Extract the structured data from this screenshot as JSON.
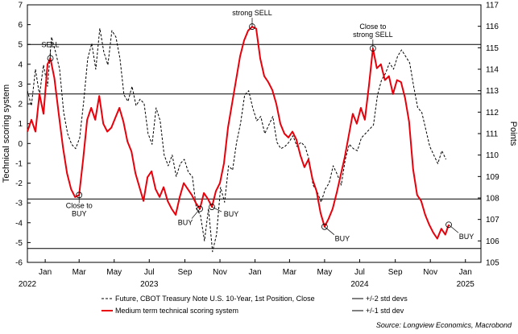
{
  "chart_data": {
    "type": "line",
    "title": "",
    "ylabel_left": "Technical scoring system",
    "ylabel_right": "Points",
    "ylim_left": [
      -6,
      7
    ],
    "ylim_right": [
      105,
      117
    ],
    "yticks_left": [
      -6,
      -5,
      -4,
      -3,
      -2,
      -1,
      0,
      1,
      2,
      3,
      4,
      5,
      6,
      7
    ],
    "yticks_right": [
      105,
      106,
      107,
      108,
      109,
      110,
      111,
      112,
      113,
      114,
      115,
      116,
      117
    ],
    "x_tick_labels": [
      "Jan",
      "Mar",
      "May",
      "Jul",
      "Sep",
      "Nov",
      "Jan",
      "Mar",
      "May",
      "Jul",
      "Sep",
      "Nov",
      "Jan"
    ],
    "x_tick_dates": [
      "2023-01-01",
      "2023-03-01",
      "2023-05-01",
      "2023-07-01",
      "2023-09-01",
      "2023-11-01",
      "2024-01-01",
      "2024-03-01",
      "2024-05-01",
      "2024-07-01",
      "2024-09-01",
      "2024-11-01",
      "2025-01-01"
    ],
    "x_year_labels": [
      {
        "label": "2022",
        "date": "2022-12-01"
      },
      {
        "label": "2023",
        "date": "2023-07-01"
      },
      {
        "label": "2024",
        "date": "2024-07-01"
      },
      {
        "label": "2025",
        "date": "2025-01-01"
      }
    ],
    "xlim": [
      "2022-12-01",
      "2025-01-28"
    ],
    "reference_lines": [
      {
        "name": "+/-2 std devs",
        "values": [
          5.0,
          -5.3
        ]
      },
      {
        "name": "+/-1 std dev",
        "values": [
          2.5,
          -2.8
        ]
      }
    ],
    "series": [
      {
        "name": "Medium term technical scoring system",
        "axis": "left",
        "color": "#e8000b",
        "style": "solid",
        "points": [
          [
            "2022-12-01",
            0.6
          ],
          [
            "2022-12-08",
            1.2
          ],
          [
            "2022-12-15",
            0.6
          ],
          [
            "2022-12-22",
            2.5
          ],
          [
            "2022-12-29",
            1.5
          ],
          [
            "2023-01-05",
            4.0
          ],
          [
            "2023-01-10",
            4.3
          ],
          [
            "2023-01-17",
            3.3
          ],
          [
            "2023-01-25",
            1.4
          ],
          [
            "2023-02-01",
            -0.2
          ],
          [
            "2023-02-08",
            -1.5
          ],
          [
            "2023-02-15",
            -2.3
          ],
          [
            "2023-02-22",
            -2.7
          ],
          [
            "2023-03-01",
            -2.6
          ],
          [
            "2023-03-08",
            -0.8
          ],
          [
            "2023-03-15",
            1.2
          ],
          [
            "2023-03-22",
            1.8
          ],
          [
            "2023-03-29",
            1.2
          ],
          [
            "2023-04-05",
            2.4
          ],
          [
            "2023-04-12",
            1.0
          ],
          [
            "2023-04-19",
            0.6
          ],
          [
            "2023-04-26",
            0.8
          ],
          [
            "2023-05-03",
            1.3
          ],
          [
            "2023-05-10",
            1.8
          ],
          [
            "2023-05-17",
            1.1
          ],
          [
            "2023-05-24",
            0.1
          ],
          [
            "2023-05-31",
            -0.4
          ],
          [
            "2023-06-07",
            -1.5
          ],
          [
            "2023-06-14",
            -2.2
          ],
          [
            "2023-06-21",
            -2.9
          ],
          [
            "2023-06-28",
            -1.7
          ],
          [
            "2023-07-05",
            -1.4
          ],
          [
            "2023-07-12",
            -2.3
          ],
          [
            "2023-07-19",
            -2.7
          ],
          [
            "2023-07-26",
            -2.2
          ],
          [
            "2023-08-02",
            -2.9
          ],
          [
            "2023-08-09",
            -3.3
          ],
          [
            "2023-08-16",
            -3.6
          ],
          [
            "2023-08-23",
            -2.7
          ],
          [
            "2023-08-30",
            -2.0
          ],
          [
            "2023-09-06",
            -2.3
          ],
          [
            "2023-09-13",
            -2.6
          ],
          [
            "2023-09-20",
            -3.0
          ],
          [
            "2023-09-27",
            -3.3
          ],
          [
            "2023-10-04",
            -2.5
          ],
          [
            "2023-10-11",
            -2.8
          ],
          [
            "2023-10-18",
            -3.2
          ],
          [
            "2023-10-25",
            -2.4
          ],
          [
            "2023-11-01",
            -2.0
          ],
          [
            "2023-11-08",
            -1.0
          ],
          [
            "2023-11-15",
            0.8
          ],
          [
            "2023-11-22",
            2.0
          ],
          [
            "2023-11-29",
            3.2
          ],
          [
            "2023-12-06",
            4.4
          ],
          [
            "2023-12-13",
            5.2
          ],
          [
            "2023-12-20",
            5.7
          ],
          [
            "2023-12-27",
            5.9
          ],
          [
            "2024-01-03",
            5.8
          ],
          [
            "2024-01-10",
            4.3
          ],
          [
            "2024-01-17",
            3.4
          ],
          [
            "2024-01-24",
            3.1
          ],
          [
            "2024-01-31",
            2.7
          ],
          [
            "2024-02-07",
            2.0
          ],
          [
            "2024-02-14",
            1.0
          ],
          [
            "2024-02-21",
            0.5
          ],
          [
            "2024-02-28",
            0.3
          ],
          [
            "2024-03-06",
            0.6
          ],
          [
            "2024-03-13",
            0.2
          ],
          [
            "2024-03-20",
            -0.6
          ],
          [
            "2024-03-27",
            -1.2
          ],
          [
            "2024-04-03",
            -0.8
          ],
          [
            "2024-04-10",
            -1.8
          ],
          [
            "2024-04-17",
            -2.4
          ],
          [
            "2024-04-24",
            -3.5
          ],
          [
            "2024-05-01",
            -4.2
          ],
          [
            "2024-05-08",
            -3.8
          ],
          [
            "2024-05-15",
            -3.3
          ],
          [
            "2024-05-22",
            -2.5
          ],
          [
            "2024-05-29",
            -1.6
          ],
          [
            "2024-06-05",
            -0.7
          ],
          [
            "2024-06-12",
            0.4
          ],
          [
            "2024-06-19",
            1.5
          ],
          [
            "2024-06-26",
            1.0
          ],
          [
            "2024-07-03",
            1.8
          ],
          [
            "2024-07-10",
            1.2
          ],
          [
            "2024-07-17",
            2.9
          ],
          [
            "2024-07-24",
            4.8
          ],
          [
            "2024-07-31",
            3.8
          ],
          [
            "2024-08-07",
            4.0
          ],
          [
            "2024-08-14",
            3.2
          ],
          [
            "2024-08-21",
            3.4
          ],
          [
            "2024-08-28",
            2.5
          ],
          [
            "2024-09-04",
            3.2
          ],
          [
            "2024-09-11",
            3.1
          ],
          [
            "2024-09-18",
            2.3
          ],
          [
            "2024-09-25",
            1.1
          ],
          [
            "2024-10-02",
            -1.3
          ],
          [
            "2024-10-09",
            -2.6
          ],
          [
            "2024-10-16",
            -2.9
          ],
          [
            "2024-10-23",
            -3.6
          ],
          [
            "2024-10-30",
            -4.1
          ],
          [
            "2024-11-06",
            -4.5
          ],
          [
            "2024-11-13",
            -4.8
          ],
          [
            "2024-11-20",
            -4.3
          ],
          [
            "2024-11-27",
            -4.6
          ],
          [
            "2024-12-03",
            -4.1
          ]
        ]
      },
      {
        "name": "Future, CBOT Treasury Note U.S. 10-Year, 1st Position, Close",
        "axis": "right",
        "color": "#000000",
        "style": "dashed",
        "points": [
          [
            "2022-12-01",
            113.0
          ],
          [
            "2022-12-08",
            112.3
          ],
          [
            "2022-12-15",
            114.0
          ],
          [
            "2022-12-22",
            112.8
          ],
          [
            "2022-12-29",
            114.2
          ],
          [
            "2023-01-05",
            113.2
          ],
          [
            "2023-01-12",
            115.5
          ],
          [
            "2023-01-19",
            114.8
          ],
          [
            "2023-01-26",
            114.0
          ],
          [
            "2023-02-02",
            112.0
          ],
          [
            "2023-02-09",
            111.0
          ],
          [
            "2023-02-16",
            110.5
          ],
          [
            "2023-02-23",
            110.3
          ],
          [
            "2023-03-02",
            110.8
          ],
          [
            "2023-03-09",
            112.5
          ],
          [
            "2023-03-16",
            114.5
          ],
          [
            "2023-03-23",
            115.2
          ],
          [
            "2023-03-30",
            114.0
          ],
          [
            "2023-04-06",
            115.9
          ],
          [
            "2023-04-13",
            114.8
          ],
          [
            "2023-04-20",
            114.2
          ],
          [
            "2023-04-27",
            115.8
          ],
          [
            "2023-05-04",
            115.5
          ],
          [
            "2023-05-11",
            114.5
          ],
          [
            "2023-05-18",
            112.8
          ],
          [
            "2023-05-25",
            112.5
          ],
          [
            "2023-06-01",
            113.2
          ],
          [
            "2023-06-08",
            112.3
          ],
          [
            "2023-06-15",
            112.6
          ],
          [
            "2023-06-22",
            112.4
          ],
          [
            "2023-06-29",
            111.0
          ],
          [
            "2023-07-06",
            110.5
          ],
          [
            "2023-07-13",
            112.2
          ],
          [
            "2023-07-20",
            111.6
          ],
          [
            "2023-07-27",
            110.0
          ],
          [
            "2023-08-03",
            109.5
          ],
          [
            "2023-08-10",
            110.0
          ],
          [
            "2023-08-17",
            109.0
          ],
          [
            "2023-08-24",
            109.6
          ],
          [
            "2023-08-31",
            109.8
          ],
          [
            "2023-09-07",
            109.2
          ],
          [
            "2023-09-14",
            109.0
          ],
          [
            "2023-09-21",
            107.5
          ],
          [
            "2023-09-28",
            107.2
          ],
          [
            "2023-10-05",
            106.0
          ],
          [
            "2023-10-12",
            107.5
          ],
          [
            "2023-10-19",
            105.5
          ],
          [
            "2023-10-26",
            106.3
          ],
          [
            "2023-11-02",
            108.5
          ],
          [
            "2023-11-09",
            107.8
          ],
          [
            "2023-11-16",
            109.5
          ],
          [
            "2023-11-23",
            109.3
          ],
          [
            "2023-11-30",
            110.6
          ],
          [
            "2023-12-07",
            111.5
          ],
          [
            "2023-12-14",
            112.8
          ],
          [
            "2023-12-21",
            113.0
          ],
          [
            "2023-12-28",
            112.2
          ],
          [
            "2024-01-04",
            111.6
          ],
          [
            "2024-01-11",
            111.8
          ],
          [
            "2024-01-18",
            111.0
          ],
          [
            "2024-01-25",
            111.4
          ],
          [
            "2024-02-01",
            111.8
          ],
          [
            "2024-02-08",
            110.6
          ],
          [
            "2024-02-15",
            110.3
          ],
          [
            "2024-02-22",
            110.4
          ],
          [
            "2024-02-29",
            110.6
          ],
          [
            "2024-03-07",
            110.9
          ],
          [
            "2024-03-14",
            110.4
          ],
          [
            "2024-03-21",
            110.6
          ],
          [
            "2024-03-28",
            110.4
          ],
          [
            "2024-04-04",
            109.8
          ],
          [
            "2024-04-11",
            108.6
          ],
          [
            "2024-04-18",
            108.3
          ],
          [
            "2024-04-25",
            107.8
          ],
          [
            "2024-05-02",
            108.4
          ],
          [
            "2024-05-09",
            108.7
          ],
          [
            "2024-05-16",
            109.5
          ],
          [
            "2024-05-23",
            109.1
          ],
          [
            "2024-05-30",
            108.6
          ],
          [
            "2024-06-06",
            109.8
          ],
          [
            "2024-06-13",
            110.5
          ],
          [
            "2024-06-20",
            110.3
          ],
          [
            "2024-06-27",
            110.2
          ],
          [
            "2024-07-04",
            110.8
          ],
          [
            "2024-07-11",
            111.0
          ],
          [
            "2024-07-18",
            111.2
          ],
          [
            "2024-07-25",
            111.4
          ],
          [
            "2024-08-01",
            112.8
          ],
          [
            "2024-08-08",
            113.5
          ],
          [
            "2024-08-15",
            113.8
          ],
          [
            "2024-08-22",
            114.3
          ],
          [
            "2024-08-29",
            114.0
          ],
          [
            "2024-09-05",
            114.6
          ],
          [
            "2024-09-12",
            114.9
          ],
          [
            "2024-09-19",
            114.6
          ],
          [
            "2024-09-26",
            114.3
          ],
          [
            "2024-10-03",
            113.2
          ],
          [
            "2024-10-10",
            112.2
          ],
          [
            "2024-10-17",
            112.0
          ],
          [
            "2024-10-24",
            111.2
          ],
          [
            "2024-10-31",
            110.4
          ],
          [
            "2024-11-07",
            110.0
          ],
          [
            "2024-11-14",
            109.6
          ],
          [
            "2024-11-21",
            110.2
          ],
          [
            "2024-11-28",
            109.8
          ]
        ]
      }
    ],
    "annotations": [
      {
        "text": "SELL",
        "date": "2023-01-10",
        "value": 4.3,
        "label_pos": "above"
      },
      {
        "text": "Close to BUY",
        "date": "2023-03-01",
        "value": -2.6,
        "label_pos": "below"
      },
      {
        "text": "BUY",
        "date": "2023-09-27",
        "value": -3.3,
        "label_pos": "below-left"
      },
      {
        "text": "BUY",
        "date": "2023-10-18",
        "value": -3.2,
        "label_pos": "right"
      },
      {
        "text": "strong SELL",
        "date": "2023-12-27",
        "value": 5.9,
        "label_pos": "above"
      },
      {
        "text": "BUY",
        "date": "2024-05-01",
        "value": -4.2,
        "label_pos": "below-right"
      },
      {
        "text": "Close to strong SELL",
        "date": "2024-07-24",
        "value": 4.8,
        "label_pos": "above"
      },
      {
        "text": "BUY",
        "date": "2024-12-03",
        "value": -4.1,
        "label_pos": "below-right"
      }
    ],
    "legend": [
      {
        "label": "Future, CBOT Treasury Note U.S. 10-Year, 1st Position, Close",
        "style": "dashed",
        "color": "#000000"
      },
      {
        "label": "+/-2 std devs",
        "style": "solid",
        "color": "#000000"
      },
      {
        "label": "Medium term technical scoring system",
        "style": "solid",
        "color": "#e8000b"
      },
      {
        "label": "+/-1 std dev",
        "style": "solid",
        "color": "#000000"
      }
    ],
    "legend_position": "bottom",
    "source": "Source: Longview Economics, Macrobond",
    "grid": false
  }
}
